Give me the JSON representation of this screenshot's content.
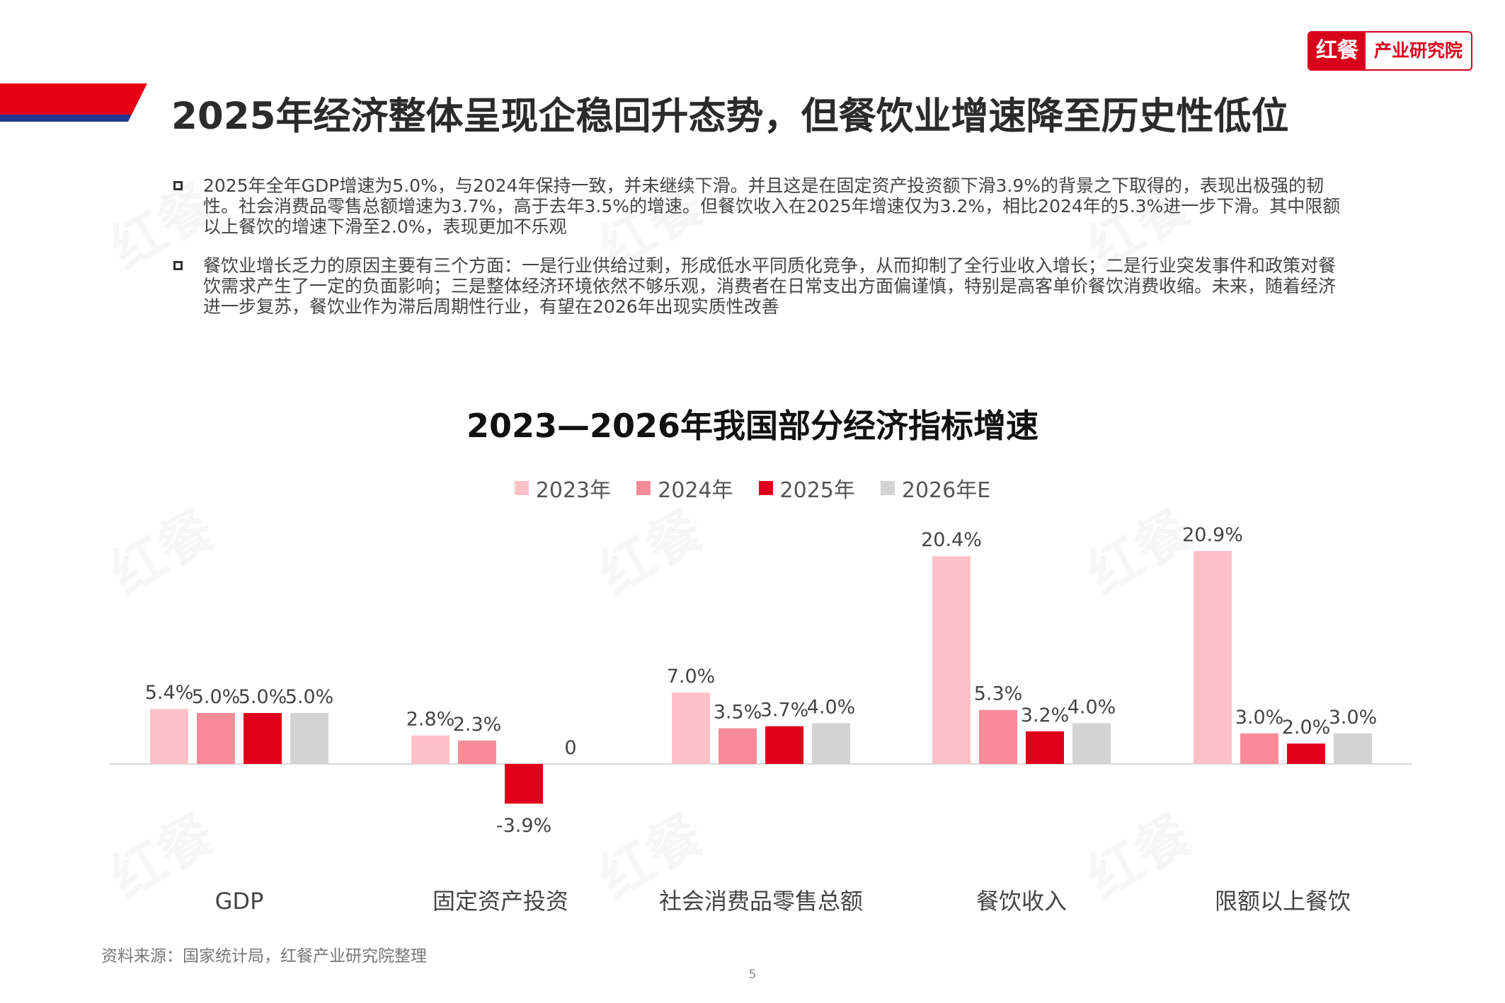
{
  "brand": {
    "mark": "红餐",
    "name": "产业研究院",
    "accent": "#d9001b",
    "navy": "#1f3a8f"
  },
  "title": "2025年经济整体呈现企稳回升态势，但餐饮业增速降至历史性低位",
  "bullets": [
    "2025年全年GDP增速为5.0%，与2024年保持一致，并未继续下滑。并且这是在固定资产投资额下滑3.9%的背景之下取得的，表现出极强的韧性。社会消费品零售总额增速为3.7%，高于去年3.5%的增速。但餐饮收入在2025年增速仅为3.2%，相比2024年的5.3%进一步下滑。其中限额以上餐饮的增速下滑至2.0%，表现更加不乐观",
    "餐饮业增长乏力的原因主要有三个方面：一是行业供给过剩，形成低水平同质化竞争，从而抑制了全行业收入增长；二是行业突发事件和政策对餐饮需求产生了一定的负面影响；三是整体经济环境依然不够乐观，消费者在日常支出方面偏谨慎，特别是高客单价餐饮消费收缩。未来，随着经济进一步复苏，餐饮业作为滞后周期性行业，有望在2026年出现实质性改善"
  ],
  "chart_data": {
    "type": "bar",
    "title": "2023—2026年我国部分经济指标增速",
    "categories": [
      "GDP",
      "固定资产投资",
      "社会消费品零售总额",
      "餐饮收入",
      "限额以上餐饮"
    ],
    "series": [
      {
        "name": "2023年",
        "color": "#ffc1c8",
        "values": [
          5.4,
          2.8,
          7.0,
          20.4,
          20.9
        ],
        "labels": [
          "5.4%",
          "2.8%",
          "7.0%",
          "20.4%",
          "20.9%"
        ]
      },
      {
        "name": "2024年",
        "color": "#f78c98",
        "values": [
          5.0,
          2.3,
          3.5,
          5.3,
          3.0
        ],
        "labels": [
          "5.0%",
          "2.3%",
          "3.5%",
          "5.3%",
          "3.0%"
        ]
      },
      {
        "name": "2025年",
        "color": "#e0001b",
        "values": [
          5.0,
          -3.9,
          3.7,
          3.2,
          2.0
        ],
        "labels": [
          "5.0%",
          "-3.9%",
          "3.7%",
          "3.2%",
          "2.0%"
        ]
      },
      {
        "name": "2026年E",
        "color": "#d3d3d3",
        "values": [
          5.0,
          0,
          4.0,
          4.0,
          3.0
        ],
        "labels": [
          "5.0%",
          "0",
          "4.0%",
          "4.0%",
          "3.0%"
        ]
      }
    ],
    "legend_position": "top",
    "grid": false
  },
  "source": "资料来源：国家统计局，红餐产业研究院整理",
  "page_number": "5"
}
